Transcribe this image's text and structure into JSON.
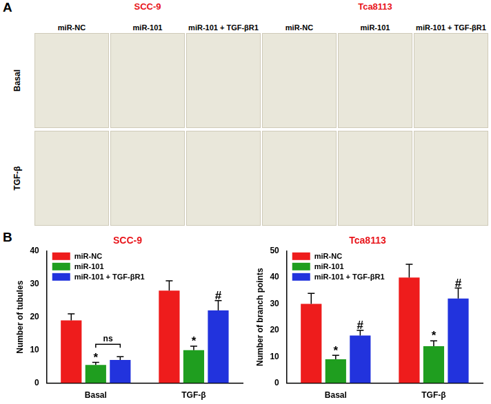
{
  "panel_labels": [
    "A",
    "B"
  ],
  "panel_a": {
    "cell_lines": [
      {
        "name": "SCC-9",
        "columns": [
          "miR-NC",
          "miR-101",
          "miR-101 + TGF-βR1"
        ]
      },
      {
        "name": "Tca8113",
        "columns": [
          "miR-NC",
          "miR-101",
          "miR-101 + TGF-βR1"
        ]
      }
    ],
    "rows": [
      "Basal",
      "TGF-β"
    ]
  },
  "chart_data": [
    {
      "type": "bar",
      "title": "SCC-9",
      "y_label": "Number of tubules",
      "categories": [
        "Basal",
        "TGF-β"
      ],
      "series": [
        {
          "name": "miR-NC",
          "color": "#ee1c1c",
          "values": [
            19,
            28
          ],
          "errors": [
            2,
            3
          ]
        },
        {
          "name": "miR-101",
          "color": "#1f9e1f",
          "values": [
            5.5,
            10
          ],
          "errors": [
            0.8,
            1.2
          ],
          "significance": [
            "*",
            "*"
          ]
        },
        {
          "name": "miR-101 + TGF-βR1",
          "color": "#2233dd",
          "values": [
            7,
            22
          ],
          "errors": [
            1,
            3
          ],
          "significance": [
            null,
            "#"
          ]
        }
      ],
      "brackets": [
        {
          "category": "Basal",
          "from": "miR-101",
          "to": "miR-101 + TGF-βR1",
          "label": "ns"
        }
      ],
      "ylim": [
        0,
        40
      ],
      "yticks": [
        0,
        10,
        20,
        30,
        40
      ],
      "grid": false,
      "legend": "upper left"
    },
    {
      "type": "bar",
      "title": "Tca8113",
      "y_label": "Number of branch points",
      "categories": [
        "Basal",
        "TGF-β"
      ],
      "series": [
        {
          "name": "miR-NC",
          "color": "#ee1c1c",
          "values": [
            30,
            40
          ],
          "errors": [
            4,
            5
          ]
        },
        {
          "name": "miR-101",
          "color": "#1f9e1f",
          "values": [
            9,
            14
          ],
          "errors": [
            1.5,
            2
          ],
          "significance": [
            "*",
            "*"
          ]
        },
        {
          "name": "miR-101 + TGF-βR1",
          "color": "#2233dd",
          "values": [
            18,
            32
          ],
          "errors": [
            2,
            4
          ],
          "significance": [
            "#",
            "#"
          ]
        }
      ],
      "ylim": [
        0,
        50
      ],
      "yticks": [
        0,
        10,
        20,
        30,
        40,
        50
      ],
      "grid": false,
      "legend": "upper left"
    }
  ]
}
